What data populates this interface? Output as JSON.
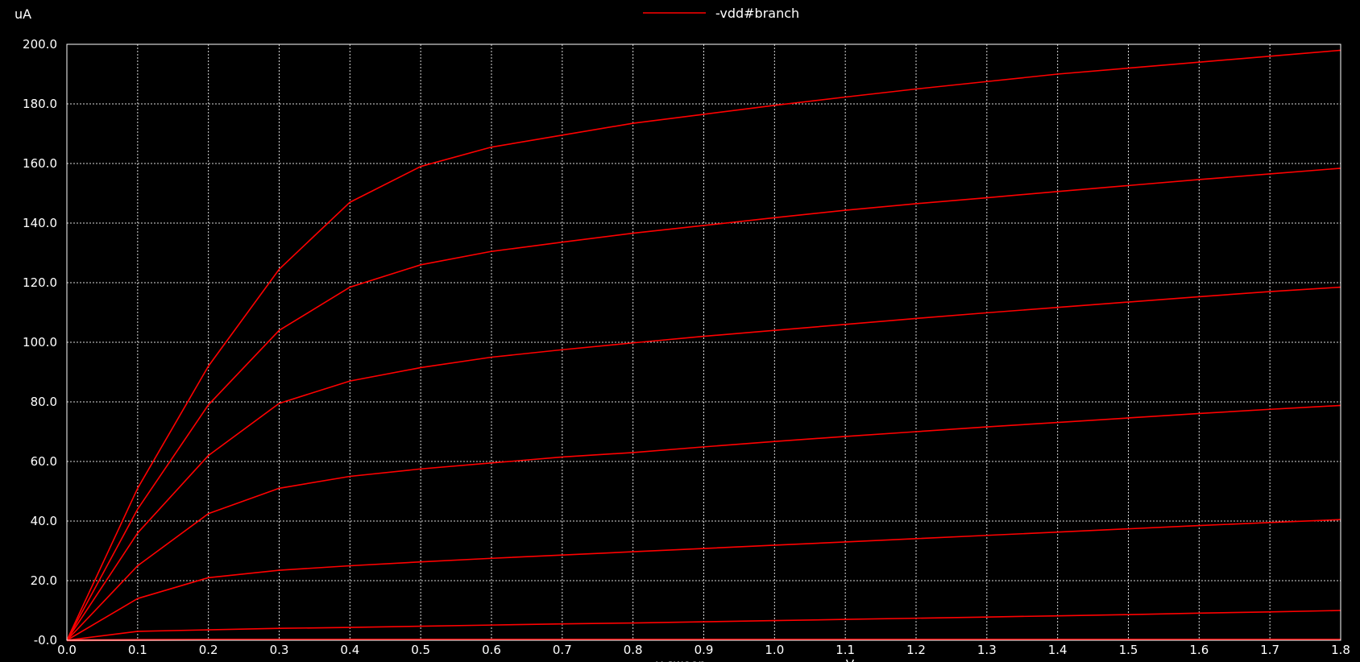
{
  "chart_data": {
    "type": "line",
    "y_unit": "uA",
    "xlabel": "v-sweep",
    "x_unit": "V",
    "legend": {
      "label": "-vdd#branch",
      "color": "#ff0000",
      "placement": "top-center"
    },
    "xlim": [
      0.0,
      1.8
    ],
    "ylim": [
      0.0,
      200.0
    ],
    "grid": true,
    "x_ticks": [
      "0.0",
      "0.1",
      "0.2",
      "0.3",
      "0.4",
      "0.5",
      "0.6",
      "0.7",
      "0.8",
      "0.9",
      "1.0",
      "1.1",
      "1.2",
      "1.3",
      "1.4",
      "1.5",
      "1.6",
      "1.7",
      "1.8"
    ],
    "y_ticks": [
      "-0.0",
      "20.0",
      "40.0",
      "60.0",
      "80.0",
      "100.0",
      "120.0",
      "140.0",
      "160.0",
      "180.0",
      "200.0"
    ],
    "x": [
      0.0,
      0.1,
      0.2,
      0.3,
      0.4,
      0.5,
      0.6,
      0.7,
      0.8,
      0.9,
      1.0,
      1.1,
      1.2,
      1.3,
      1.4,
      1.5,
      1.6,
      1.7,
      1.8
    ],
    "series": [
      {
        "values": [
          0,
          0.1,
          0.2,
          0.2,
          0.2,
          0.2,
          0.2,
          0.2,
          0.2,
          0.2,
          0.2,
          0.2,
          0.2,
          0.2,
          0.2,
          0.2,
          0.2,
          0.2,
          0.2
        ]
      },
      {
        "values": [
          0,
          3.0,
          3.5,
          4.0,
          4.3,
          4.7,
          5.1,
          5.5,
          5.8,
          6.2,
          6.6,
          7.0,
          7.4,
          7.8,
          8.2,
          8.6,
          9.1,
          9.5,
          10.0
        ]
      },
      {
        "values": [
          0,
          14.0,
          21.0,
          23.5,
          25.0,
          26.3,
          27.5,
          28.6,
          29.7,
          30.8,
          31.9,
          33.0,
          34.1,
          35.2,
          36.3,
          37.4,
          38.5,
          39.5,
          40.5
        ]
      },
      {
        "values": [
          0,
          25.0,
          42.5,
          51.0,
          55.0,
          57.5,
          59.5,
          61.5,
          63.0,
          64.9,
          66.7,
          68.4,
          70.0,
          71.6,
          73.1,
          74.6,
          76.1,
          77.5,
          78.8
        ]
      },
      {
        "values": [
          0,
          36.0,
          62.0,
          79.5,
          87.0,
          91.5,
          95.0,
          97.5,
          99.8,
          102.0,
          104.0,
          106.0,
          108.0,
          109.9,
          111.7,
          113.5,
          115.3,
          117.0,
          118.5
        ]
      },
      {
        "values": [
          0,
          44.0,
          79.0,
          104.0,
          118.5,
          126.0,
          130.5,
          133.6,
          136.6,
          139.2,
          141.8,
          144.3,
          146.5,
          148.5,
          150.6,
          152.6,
          154.6,
          156.5,
          158.4
        ]
      },
      {
        "values": [
          0,
          51.0,
          92.0,
          124.5,
          147.0,
          159.0,
          165.5,
          169.5,
          173.5,
          176.5,
          179.5,
          182.3,
          185.0,
          187.5,
          190.0,
          192.0,
          194.0,
          196.0,
          198.0
        ]
      }
    ]
  }
}
